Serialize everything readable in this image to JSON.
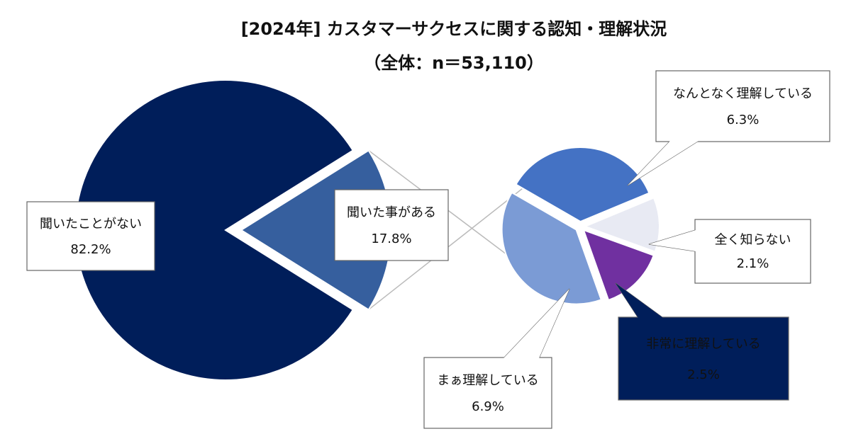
{
  "chart_data": {
    "type": "pie_of_pie",
    "title": "[2024年] カスタマーサクセスに関する認知・理解状況",
    "subtitle": "（全体：n＝53,110）",
    "categories": [
      "聞いたことがない",
      "聞いた事がある"
    ],
    "values": [
      82.2,
      17.8
    ],
    "value_labels": [
      "82.2%",
      "17.8%"
    ],
    "colors": [
      "#001e5a",
      "#365f9e"
    ],
    "sub": {
      "categories": [
        "なんとなく理解している",
        "全く知らない",
        "非常に理解している",
        "まぁ理解している"
      ],
      "values": [
        6.3,
        2.1,
        2.5,
        6.9
      ],
      "value_labels": [
        "6.3%",
        "2.1%",
        "2.5%",
        "6.9%"
      ],
      "colors": [
        "#4472c4",
        "#e8eaf3",
        "#7030a0",
        "#7b9bd5"
      ]
    }
  }
}
